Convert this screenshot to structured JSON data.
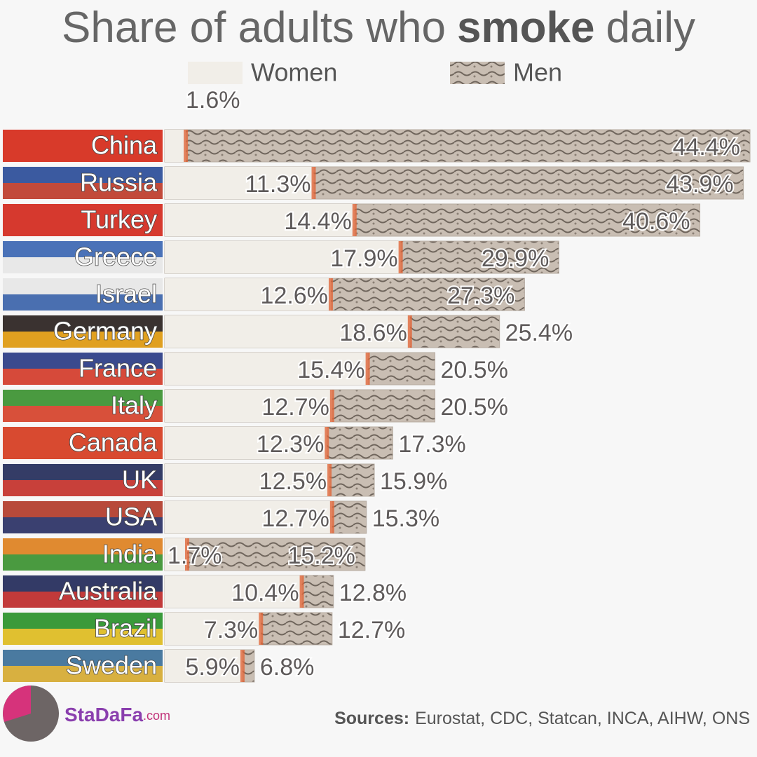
{
  "chart_data": {
    "type": "bar",
    "title_parts": [
      "Share of adults who",
      "smoke",
      "daily"
    ],
    "categories": [
      "China",
      "Russia",
      "Turkey",
      "Greece",
      "Israel",
      "Germany",
      "France",
      "Italy",
      "Canada",
      "UK",
      "USA",
      "India",
      "Australia",
      "Brazil",
      "Sweden"
    ],
    "series": [
      {
        "name": "Women",
        "color": "#f1eee8",
        "values": [
          1.6,
          11.3,
          14.4,
          17.9,
          12.6,
          18.6,
          15.4,
          12.7,
          12.3,
          12.5,
          12.7,
          1.7,
          10.4,
          7.3,
          5.9
        ],
        "value_labels": [
          "1.6%",
          "11.3%",
          "14.4%",
          "17.9%",
          "12.6%",
          "18.6%",
          "15.4%",
          "12.7%",
          "12.3%",
          "12.5%",
          "12.7%",
          "1.7%",
          "10.4%",
          "7.3%",
          "5.9%"
        ]
      },
      {
        "name": "Men",
        "color": "#b7aca2",
        "values": [
          44.4,
          43.9,
          40.6,
          29.9,
          27.3,
          25.4,
          20.5,
          20.5,
          17.3,
          15.9,
          15.3,
          15.2,
          12.8,
          12.7,
          6.8
        ],
        "value_labels": [
          "44.4%",
          "43.9%",
          "40.6%",
          "29.9%",
          "27.3%",
          "25.4%",
          "20.5%",
          "20.5%",
          "17.3%",
          "15.9%",
          "15.3%",
          "15.2%",
          "12.8%",
          "12.7%",
          "6.8%"
        ]
      }
    ],
    "xlim": [
      0,
      44.4
    ],
    "source_label": "Sources:",
    "source": "Eurostat, CDC, Statcan, INCA, AIHW, ONS",
    "brand": "StaDaFa",
    "brand_suffix": ".com"
  }
}
